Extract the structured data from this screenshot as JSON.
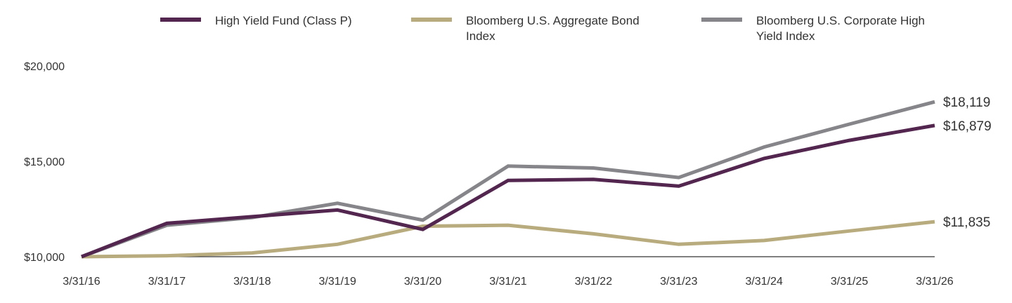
{
  "chart_data": {
    "type": "line",
    "title": "",
    "xlabel": "",
    "ylabel": "",
    "ylim": [
      10000,
      20000
    ],
    "y_ticks": [
      {
        "value": 10000,
        "label": "$10,000"
      },
      {
        "value": 15000,
        "label": "$15,000"
      },
      {
        "value": 20000,
        "label": "$20,000"
      }
    ],
    "categories": [
      "3/31/16",
      "3/31/17",
      "3/31/18",
      "3/31/19",
      "3/31/20",
      "3/31/21",
      "3/31/22",
      "3/31/23",
      "3/31/24",
      "3/31/25",
      "3/31/26"
    ],
    "series": [
      {
        "key": "corporate_high_yield",
        "name": "Bloomberg U.S. Corporate High Yield Index",
        "legend_lines": [
          "Bloomberg U.S. Corporate High",
          "Yield Index"
        ],
        "color": "#86868a",
        "values": [
          10000,
          11650,
          12050,
          12800,
          11920,
          14750,
          14650,
          14150,
          15750,
          16950,
          18119
        ],
        "end_label": "$18,119"
      },
      {
        "key": "aggregate_bond",
        "name": "Bloomberg U.S. Aggregate Bond Index",
        "legend_lines": [
          "Bloomberg U.S. Aggregate Bond",
          "Index"
        ],
        "color": "#b8ac7e",
        "values": [
          10000,
          10050,
          10200,
          10650,
          11600,
          11650,
          11200,
          10650,
          10850,
          11350,
          11835
        ],
        "end_label": "$11,835"
      },
      {
        "key": "high_yield_fund",
        "name": "High Yield Fund (Class P)",
        "legend_lines": [
          "High Yield Fund (Class P)"
        ],
        "color": "#53264f",
        "values": [
          10000,
          11750,
          12100,
          12450,
          11430,
          14000,
          14050,
          13700,
          15150,
          16100,
          16879
        ],
        "end_label": "$16,879"
      }
    ],
    "legend_order": [
      "high_yield_fund",
      "aggregate_bond",
      "corporate_high_yield"
    ],
    "legend_position": "top",
    "grid": false
  }
}
